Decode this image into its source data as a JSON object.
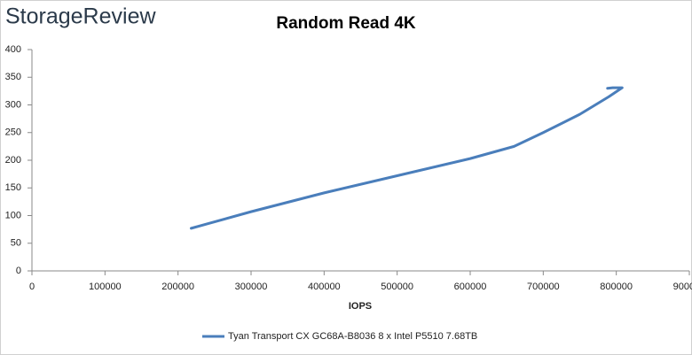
{
  "brand": "StorageReview",
  "chart_data": {
    "type": "line",
    "title": "Random Read 4K",
    "x_label": "IOPS",
    "series": [
      {
        "name": "Tyan Transport CX GC68A-B8036 8 x Intel P5510 7.68TB",
        "color": "#4a7ebb",
        "x": [
          218000,
          300000,
          400000,
          500000,
          600000,
          660000,
          700000,
          750000,
          790000,
          808000,
          795000,
          788000
        ],
        "values": [
          77,
          107,
          141,
          172,
          203,
          225,
          250,
          283,
          315,
          331,
          331,
          330
        ]
      }
    ],
    "xlim": [
      0,
      900000
    ],
    "xticks": [
      0,
      100000,
      200000,
      300000,
      400000,
      500000,
      600000,
      700000,
      800000,
      900000
    ],
    "ylim": [
      0,
      400
    ],
    "yticks": [
      0,
      50,
      100,
      150,
      200,
      250,
      300,
      350,
      400
    ],
    "grid": false,
    "legend": "bottom"
  }
}
